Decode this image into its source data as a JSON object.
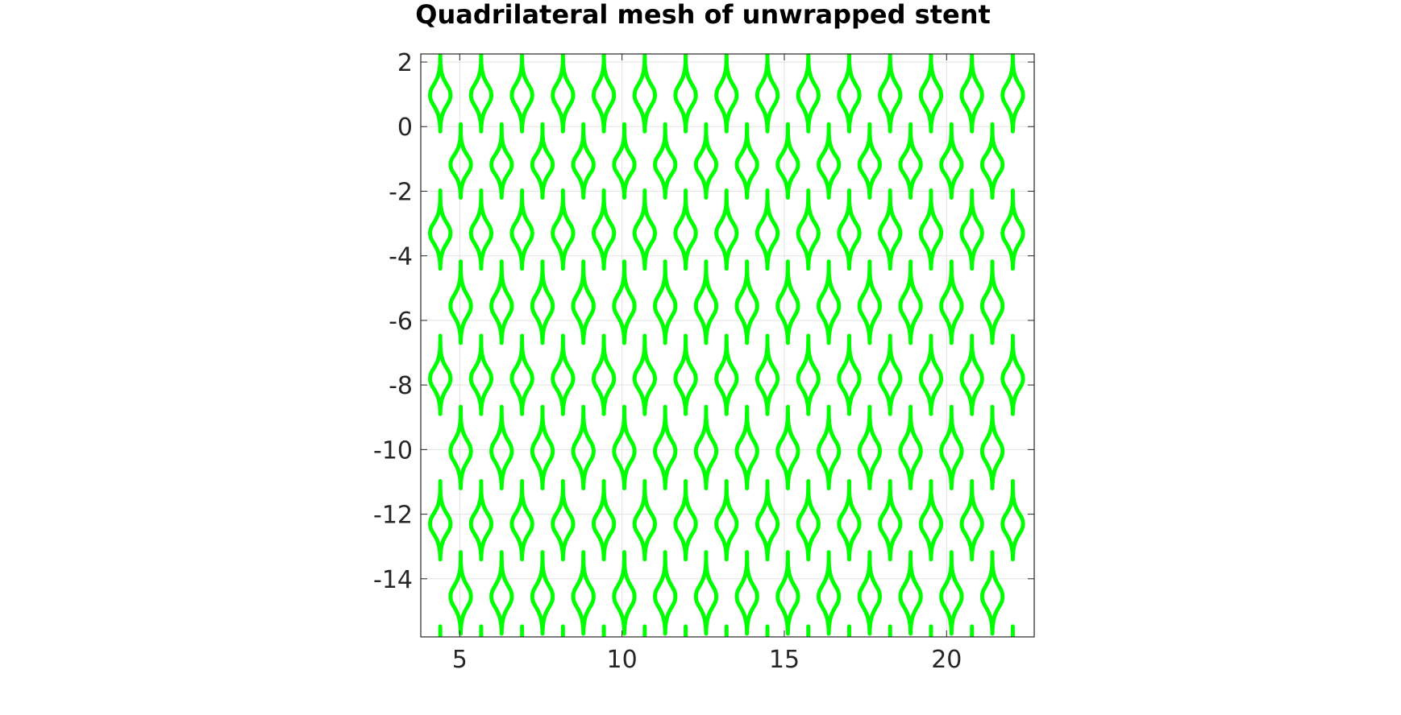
{
  "chart_data": {
    "type": "line",
    "title": "Quadrilateral mesh of unwrapped stent",
    "xlabel": "",
    "ylabel": "",
    "xlim": [
      3.8,
      22.7
    ],
    "ylim": [
      -15.8,
      2.25
    ],
    "xticks": [
      5,
      10,
      15,
      20
    ],
    "xtick_labels": [
      "5",
      "10",
      "15",
      "20"
    ],
    "yticks": [
      2,
      0,
      -2,
      -4,
      -6,
      -8,
      -10,
      -12,
      -14
    ],
    "ytick_labels": [
      "2",
      "0",
      "-2",
      "-4",
      "-6",
      "-8",
      "-10",
      "-12",
      "-14"
    ],
    "grid": true,
    "box": true,
    "aspect": "equal",
    "mesh": {
      "description": "repeating strut pattern of the unwrapped stent",
      "strut_column_x": [
        4.4,
        5.03,
        5.66,
        6.29,
        6.92,
        7.55,
        8.18,
        8.81,
        9.44,
        10.07,
        10.7,
        11.33,
        11.96,
        12.59,
        13.22,
        13.85,
        14.48,
        15.11,
        15.74,
        16.37,
        17.0,
        17.63,
        18.26,
        18.89,
        19.52,
        20.15,
        20.78,
        21.41,
        22.04
      ],
      "node_row_y": [
        2.1,
        -0.15,
        -2.2,
        -4.4,
        -6.7,
        -8.9,
        -11.2,
        -13.4,
        -15.7
      ],
      "line_color": "#00ff00"
    }
  }
}
